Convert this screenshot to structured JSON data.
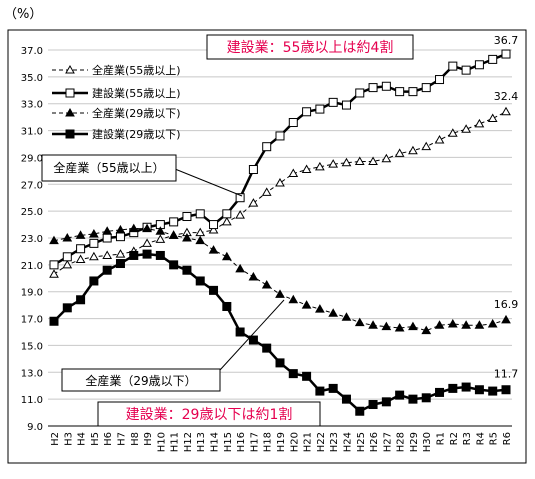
{
  "unit_label": "（%）",
  "callouts": {
    "older_highlight": "建設業：55歳以上は約4割",
    "younger_highlight": "建設業：29歳以下は約1割",
    "older_box": "全産業（55歳以上）",
    "younger_box": "全産業（29歳以下）"
  },
  "colors": {
    "series": "#000000",
    "highlight": "#e5004f",
    "grid": "#c8c8c8"
  },
  "chart_data": {
    "type": "line",
    "ylim": [
      9.0,
      37.0
    ],
    "yticks": [
      "37.0",
      "35.0",
      "33.0",
      "31.0",
      "29.0",
      "27.0",
      "25.0",
      "23.0",
      "21.0",
      "19.0",
      "17.0",
      "15.0",
      "13.0",
      "11.0",
      "9.0"
    ],
    "grid": true,
    "legend_position": "top-left",
    "categories": [
      "H2",
      "H3",
      "H4",
      "H5",
      "H6",
      "H7",
      "H8",
      "H9",
      "H10",
      "H11",
      "H12",
      "H13",
      "H14",
      "H15",
      "H16",
      "H17",
      "H18",
      "H19",
      "H20",
      "H21",
      "H22",
      "H23",
      "H24",
      "H25",
      "H26",
      "H27",
      "H28",
      "H29",
      "H30",
      "R1",
      "R2",
      "R3",
      "R4",
      "R5",
      "R6"
    ],
    "series": [
      {
        "name": "全産業(55歳以上)",
        "marker": "triangle",
        "line": "dashed-thin",
        "values": [
          20.3,
          21.0,
          21.4,
          21.6,
          21.7,
          21.8,
          22.0,
          22.6,
          22.9,
          23.2,
          23.4,
          23.4,
          23.6,
          24.2,
          24.7,
          25.6,
          26.4,
          27.1,
          27.8,
          28.1,
          28.3,
          28.5,
          28.6,
          28.7,
          28.7,
          28.9,
          29.3,
          29.5,
          29.8,
          30.3,
          30.8,
          31.1,
          31.5,
          31.9,
          32.4
        ],
        "end_label": "32.4"
      },
      {
        "name": "建設業(55歳以上)",
        "marker": "square",
        "line": "solid-bold",
        "values": [
          21.0,
          21.6,
          22.2,
          22.6,
          23.0,
          23.1,
          23.4,
          23.8,
          24.0,
          24.2,
          24.6,
          24.8,
          24.0,
          24.8,
          26.0,
          28.1,
          29.8,
          30.6,
          31.6,
          32.4,
          32.6,
          33.1,
          32.9,
          33.8,
          34.2,
          34.3,
          33.9,
          33.9,
          34.2,
          34.8,
          35.8,
          35.5,
          35.9,
          36.3,
          36.7
        ],
        "end_label": "36.7"
      },
      {
        "name": "全産業(29歳以下)",
        "marker": "triangle",
        "line": "dashed-thin",
        "values": [
          22.8,
          23.0,
          23.2,
          23.3,
          23.5,
          23.6,
          23.7,
          23.7,
          23.5,
          23.2,
          23.0,
          22.8,
          22.1,
          21.6,
          20.7,
          20.1,
          19.5,
          18.8,
          18.4,
          18.0,
          17.7,
          17.4,
          17.1,
          16.7,
          16.5,
          16.4,
          16.3,
          16.4,
          16.1,
          16.5,
          16.6,
          16.5,
          16.5,
          16.6,
          16.9
        ],
        "end_label": "16.9"
      },
      {
        "name": "建設業(29歳以下)",
        "marker": "square-filled",
        "line": "solid-bold",
        "values": [
          16.8,
          17.8,
          18.4,
          19.8,
          20.6,
          21.1,
          21.7,
          21.8,
          21.7,
          21.0,
          20.6,
          19.8,
          19.1,
          17.9,
          16.0,
          15.4,
          14.8,
          13.7,
          12.9,
          12.7,
          11.6,
          11.8,
          11.0,
          10.1,
          10.6,
          10.8,
          11.3,
          11.0,
          11.1,
          11.5,
          11.8,
          11.9,
          11.7,
          11.6,
          11.7
        ],
        "end_label": "11.7"
      }
    ]
  }
}
